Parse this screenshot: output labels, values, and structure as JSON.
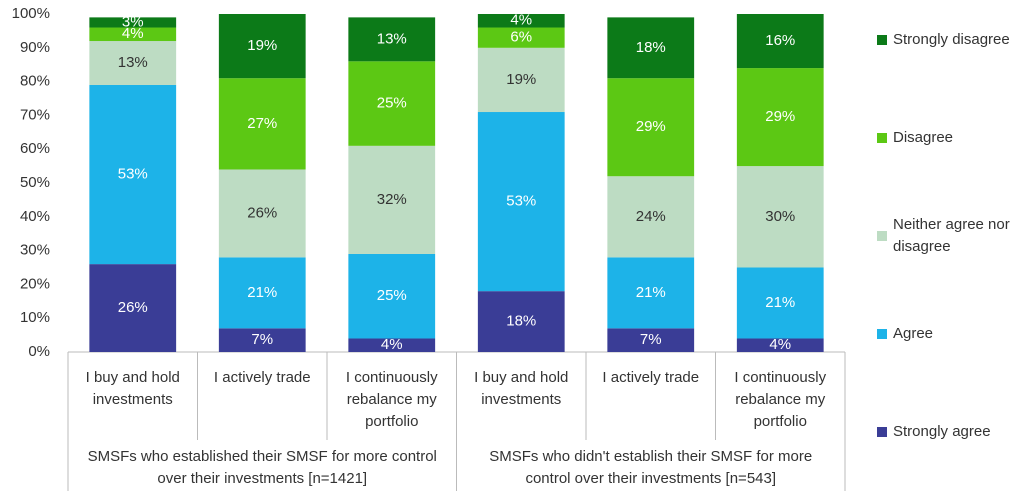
{
  "chart_data": {
    "type": "stacked-bar",
    "categories": [
      "I buy and hold investments",
      "I actively trade",
      "I continuously rebalance my portfolio",
      "I buy and hold investments",
      "I actively trade",
      "I continuously rebalance my portfolio"
    ],
    "group_labels": [
      "SMSFs who established their SMSF for more control over their investments [n=1421]",
      "SMSFs who didn't establish their SMSF for more control over their investments [n=543]"
    ],
    "series": [
      {
        "name": "Strongly agree",
        "color": "#3a3d96",
        "label_color": "#ffffff",
        "values": [
          26,
          7,
          4,
          18,
          7,
          4
        ],
        "value_labels": [
          "26%",
          "7%",
          "4%",
          "18%",
          "7%",
          "4%"
        ]
      },
      {
        "name": "Agree",
        "color": "#1db3e8",
        "label_color": "#ffffff",
        "values": [
          53,
          21,
          25,
          53,
          21,
          21
        ],
        "value_labels": [
          "53%",
          "21%",
          "25%",
          "53%",
          "21%",
          "21%"
        ]
      },
      {
        "name": "Neither agree nor disagree",
        "color": "#bddcc3",
        "label_color": "#333333",
        "values": [
          13,
          26,
          32,
          19,
          24,
          30
        ],
        "value_labels": [
          "13%",
          "26%",
          "32%",
          "19%",
          "24%",
          "30%"
        ]
      },
      {
        "name": "Disagree",
        "color": "#5cc814",
        "label_color": "#ffffff",
        "values": [
          4,
          27,
          25,
          6,
          29,
          29
        ],
        "value_labels": [
          "4%",
          "27%",
          "25%",
          "6%",
          "29%",
          "29%"
        ]
      },
      {
        "name": "Strongly disagree",
        "color": "#0c7a18",
        "label_color": "#ffffff",
        "values": [
          3,
          19,
          13,
          4,
          18,
          16
        ],
        "value_labels": [
          "3%",
          "19%",
          "13%",
          "4%",
          "18%",
          "16%"
        ]
      }
    ],
    "ylim": [
      0,
      100
    ],
    "yticks": [
      {
        "value": 0,
        "label": "0%"
      },
      {
        "value": 10,
        "label": "10%"
      },
      {
        "value": 20,
        "label": "20%"
      },
      {
        "value": 30,
        "label": "30%"
      },
      {
        "value": 40,
        "label": "40%"
      },
      {
        "value": 50,
        "label": "50%"
      },
      {
        "value": 60,
        "label": "60%"
      },
      {
        "value": 70,
        "label": "70%"
      },
      {
        "value": 80,
        "label": "80%"
      },
      {
        "value": 90,
        "label": "90%"
      },
      {
        "value": 100,
        "label": "100%"
      }
    ],
    "grid": false,
    "legend": "right"
  }
}
